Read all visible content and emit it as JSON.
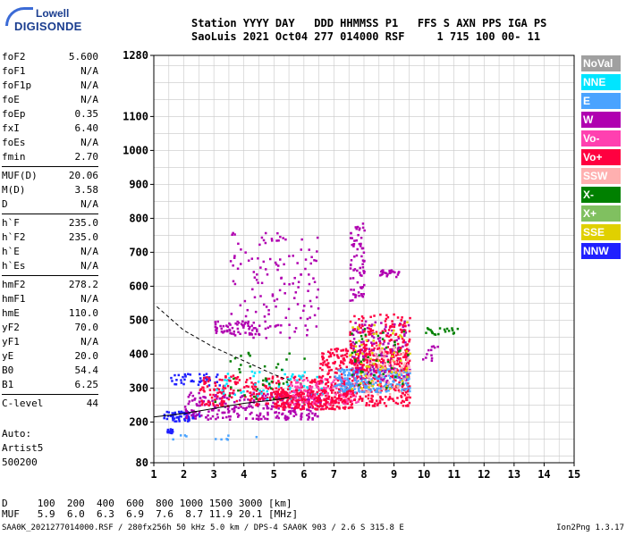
{
  "logo": {
    "line1": "Lowell",
    "line2": "DIGISONDE"
  },
  "header": {
    "line1": "Station YYYY DAY   DDD HHMMSS P1   FFS S AXN PPS IGA PS",
    "line2": "SaoLuis 2021 Oct04 277 014000 RSF     1 715 100 00- 11"
  },
  "params": [
    [
      {
        "n": "foF2",
        "v": "5.600"
      },
      {
        "n": "foF1",
        "v": "N/A"
      },
      {
        "n": "foF1p",
        "v": "N/A"
      },
      {
        "n": "foE",
        "v": "N/A"
      },
      {
        "n": "foEp",
        "v": "0.35"
      },
      {
        "n": "fxI",
        "v": "6.40"
      },
      {
        "n": "foEs",
        "v": "N/A"
      },
      {
        "n": "fmin",
        "v": "2.70"
      }
    ],
    [
      {
        "n": "MUF(D)",
        "v": "20.06"
      },
      {
        "n": "M(D)",
        "v": "3.58"
      },
      {
        "n": "D",
        "v": "N/A"
      }
    ],
    [
      {
        "n": "h`F",
        "v": "235.0"
      },
      {
        "n": "h`F2",
        "v": "235.0"
      },
      {
        "n": "h`E",
        "v": "N/A"
      },
      {
        "n": "h`Es",
        "v": "N/A"
      }
    ],
    [
      {
        "n": "hmF2",
        "v": "278.2"
      },
      {
        "n": "hmF1",
        "v": "N/A"
      },
      {
        "n": "hmE",
        "v": "110.0"
      },
      {
        "n": "yF2",
        "v": "70.0"
      },
      {
        "n": "yF1",
        "v": "N/A"
      },
      {
        "n": "yE",
        "v": "20.0"
      },
      {
        "n": "B0",
        "v": "54.4"
      },
      {
        "n": "B1",
        "v": "6.25"
      }
    ],
    [
      {
        "n": "C-level",
        "v": "44"
      }
    ]
  ],
  "autoscale": {
    "line1": "Auto:",
    "line2": "Artist5",
    "line3": "500200"
  },
  "legend": [
    {
      "label": "NoVal",
      "color": "#a0a0a0"
    },
    {
      "label": "NNE",
      "color": "#00e5ff"
    },
    {
      "label": "E",
      "color": "#4aa3ff"
    },
    {
      "label": "W",
      "color": "#b000b0"
    },
    {
      "label": "Vo-",
      "color": "#ff40b0"
    },
    {
      "label": "Vo+",
      "color": "#ff0040"
    },
    {
      "label": "SSW",
      "color": "#ffb0b0"
    },
    {
      "label": "X-",
      "color": "#008000"
    },
    {
      "label": "X+",
      "color": "#80c060"
    },
    {
      "label": "SSE",
      "color": "#e0d000"
    },
    {
      "label": "NNW",
      "color": "#2020ff"
    }
  ],
  "muf_table": {
    "line1": "D     100  200  400  600  800 1000 1500 3000 [km]",
    "line2": "MUF   5.9  6.0  6.3  6.9  7.6  8.7 11.9 20.1 [MHz]"
  },
  "footer": {
    "left": "SAA0K_2021277014000.RSF / 280fx256h 50 kHz 5.0 km / DPS-4 SAA0K 903 / 2.6 S 315.8 E",
    "right": "Ion2Png 1.3.17"
  },
  "chart_data": {
    "type": "scatter",
    "xlim": [
      1,
      15
    ],
    "ylim": [
      80,
      1280
    ],
    "x_ticks": [
      1,
      2,
      3,
      4,
      5,
      6,
      7,
      8,
      9,
      10,
      11,
      12,
      13,
      14,
      15
    ],
    "y_tick_values": [
      80,
      200,
      300,
      400,
      500,
      600,
      700,
      800,
      900,
      1000,
      1100,
      1280
    ],
    "y_tick_labels": [
      "80",
      "200",
      "300",
      "400",
      "500",
      "600",
      "700",
      "800",
      "900",
      "1000",
      "1100",
      "1280"
    ],
    "grid": true,
    "trace_line": {
      "x": [
        1.0,
        2.0,
        3.0,
        4.0,
        5.0,
        5.5
      ],
      "y": [
        215,
        225,
        240,
        255,
        265,
        272
      ]
    },
    "profile_dashed": {
      "x": [
        1.1,
        2.0,
        3.0,
        4.0,
        5.0,
        5.6
      ],
      "y": [
        540,
        470,
        420,
        380,
        340,
        320
      ]
    },
    "regions": [
      {
        "x": [
          1.4,
          1.6
        ],
        "y": [
          168,
          182
        ],
        "color": "#2020ff",
        "n": 20
      },
      {
        "x": [
          1.3,
          2.5
        ],
        "y": [
          205,
          235
        ],
        "color": "#2020ff",
        "n": 60
      },
      {
        "x": [
          1.5,
          3.2
        ],
        "y": [
          310,
          345
        ],
        "color": "#2020ff",
        "n": 40
      },
      {
        "x": [
          2.0,
          6.6
        ],
        "y": [
          210,
          290
        ],
        "color": "#b000b0",
        "n": 280
      },
      {
        "x": [
          2.5,
          6.6
        ],
        "y": [
          250,
          340
        ],
        "color": "#ff0040",
        "n": 260
      },
      {
        "x": [
          3.0,
          6.6
        ],
        "y": [
          270,
          360
        ],
        "color": "#00e5ff",
        "n": 60
      },
      {
        "x": [
          3.0,
          6.0
        ],
        "y": [
          260,
          420
        ],
        "color": "#008000",
        "n": 40
      },
      {
        "x": [
          5.0,
          7.6
        ],
        "y": [
          240,
          300
        ],
        "color": "#ff0040",
        "n": 260
      },
      {
        "x": [
          5.5,
          7.8
        ],
        "y": [
          255,
          330
        ],
        "color": "#ff40b0",
        "n": 120
      },
      {
        "x": [
          6.5,
          9.5
        ],
        "y": [
          250,
          420
        ],
        "color": "#ff0040",
        "n": 420
      },
      {
        "x": [
          7.0,
          9.5
        ],
        "y": [
          290,
          360
        ],
        "color": "#4aa3ff",
        "n": 220
      },
      {
        "x": [
          7.5,
          9.5
        ],
        "y": [
          320,
          500
        ],
        "color": "#b000b0",
        "n": 160
      },
      {
        "x": [
          7.5,
          9.5
        ],
        "y": [
          350,
          520
        ],
        "color": "#ff0040",
        "n": 180
      },
      {
        "x": [
          7.5,
          9.5
        ],
        "y": [
          300,
          500
        ],
        "color": "#e0d000",
        "n": 60
      },
      {
        "x": [
          7.5,
          9.5
        ],
        "y": [
          300,
          480
        ],
        "color": "#008000",
        "n": 40
      },
      {
        "x": [
          8.0,
          9.5
        ],
        "y": [
          280,
          430
        ],
        "color": "#ffb0b0",
        "n": 60
      },
      {
        "x": [
          7.5,
          8.0
        ],
        "y": [
          560,
          790
        ],
        "color": "#b000b0",
        "n": 70
      },
      {
        "x": [
          8.5,
          9.2
        ],
        "y": [
          630,
          650
        ],
        "color": "#b000b0",
        "n": 25
      },
      {
        "x": [
          10.0,
          11.1
        ],
        "y": [
          460,
          480
        ],
        "color": "#008000",
        "n": 20
      },
      {
        "x": [
          3.5,
          6.5
        ],
        "y": [
          450,
          760
        ],
        "color": "#b000b0",
        "n": 140
      },
      {
        "x": [
          3.0,
          4.5
        ],
        "y": [
          460,
          500
        ],
        "color": "#b000b0",
        "n": 60
      },
      {
        "x": [
          9.8,
          10.5
        ],
        "y": [
          380,
          430
        ],
        "color": "#b000b0",
        "n": 12
      },
      {
        "x": [
          1.5,
          4.5
        ],
        "y": [
          150,
          165
        ],
        "color": "#4aa3ff",
        "n": 10
      }
    ]
  }
}
